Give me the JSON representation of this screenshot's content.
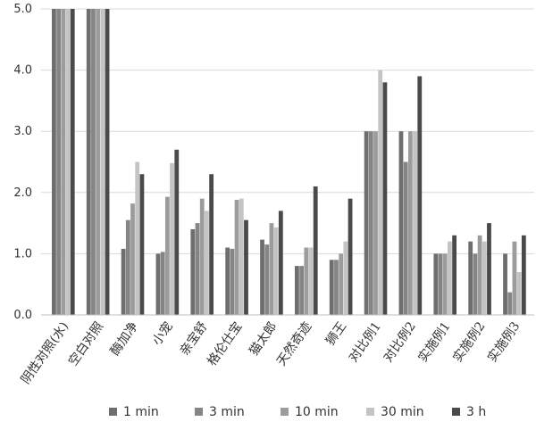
{
  "chart_data": {
    "type": "bar",
    "categories": [
      "阴性对照(水)",
      "空白对照",
      "酶加净",
      "小宠",
      "亲宝舒",
      "格伦仕宝",
      "猫太郎",
      "天然奇迹",
      "狮王",
      "对比例1",
      "对比例2",
      "实施例1",
      "实施例2",
      "实施例3"
    ],
    "series": [
      {
        "name": "1 min",
        "color": "#6e6e6e",
        "values": [
          5.0,
          5.0,
          1.08,
          1.0,
          1.4,
          1.1,
          1.23,
          0.8,
          0.9,
          3.0,
          3.0,
          1.0,
          1.2,
          1.0
        ]
      },
      {
        "name": "3 min",
        "color": "#858585",
        "values": [
          5.0,
          5.0,
          1.55,
          1.03,
          1.5,
          1.08,
          1.15,
          0.8,
          0.9,
          3.0,
          2.5,
          1.0,
          1.0,
          0.37
        ]
      },
      {
        "name": "10 min",
        "color": "#9c9c9c",
        "values": [
          5.0,
          5.0,
          1.82,
          1.93,
          1.9,
          1.88,
          1.5,
          1.1,
          1.0,
          3.0,
          3.0,
          1.0,
          1.3,
          1.2
        ]
      },
      {
        "name": "30 min",
        "color": "#c4c4c4",
        "values": [
          5.0,
          5.0,
          2.5,
          2.48,
          1.7,
          1.9,
          1.43,
          1.1,
          1.2,
          4.0,
          3.0,
          1.2,
          1.2,
          0.7
        ]
      },
      {
        "name": "3 h",
        "color": "#4a4a4a",
        "values": [
          5.0,
          5.0,
          2.3,
          2.7,
          2.3,
          1.55,
          1.7,
          2.1,
          1.9,
          3.8,
          3.9,
          1.3,
          1.5,
          1.3
        ]
      }
    ],
    "yticks": [
      "0.0",
      "1.0",
      "2.0",
      "3.0",
      "4.0",
      "5.0"
    ],
    "ylim": [
      0,
      5
    ],
    "grid": true,
    "legend_position": "bottom"
  }
}
